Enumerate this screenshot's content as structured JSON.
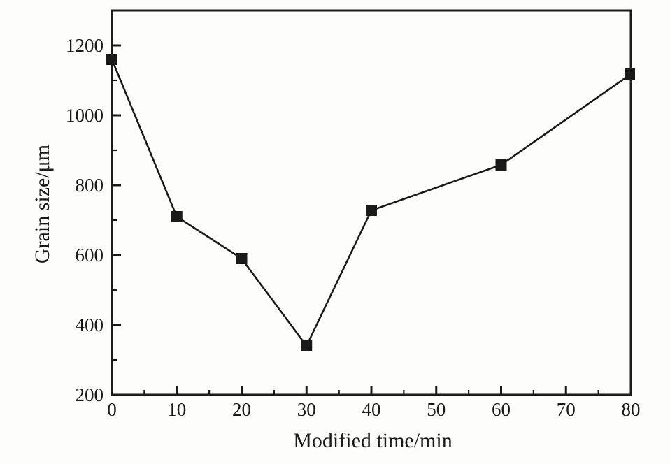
{
  "figure": {
    "background_color": "#fdfdfc",
    "ink_color": "#1a1a1a"
  },
  "chart_data": {
    "type": "line",
    "title": "",
    "xlabel": "Modified time/min",
    "ylabel": "Grain size/μm",
    "x": [
      0,
      10,
      20,
      30,
      40,
      60,
      80
    ],
    "y": [
      1160,
      710,
      590,
      340,
      728,
      858,
      1118
    ],
    "xlim": [
      0,
      80
    ],
    "ylim": [
      200,
      1300
    ],
    "x_major_ticks": [
      0,
      10,
      20,
      30,
      40,
      50,
      60,
      70,
      80
    ],
    "x_minor_ticks": [
      5,
      15,
      25,
      35,
      45,
      55,
      65,
      75
    ],
    "y_major_ticks": [
      200,
      400,
      600,
      800,
      1000,
      1200
    ],
    "y_minor_ticks": [
      300,
      500,
      700,
      900,
      1100
    ],
    "grid": false,
    "legend_position": "none",
    "marker": "filled-square",
    "line_color": "#1a1a1a",
    "marker_color": "#1a1a1a",
    "frame": "full-box",
    "tick_direction": "in"
  }
}
